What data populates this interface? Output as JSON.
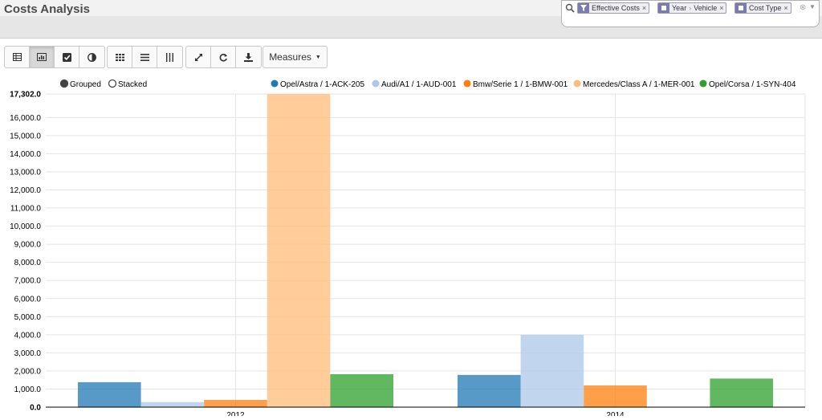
{
  "header": {
    "title": "Costs Analysis"
  },
  "search": {
    "facets": [
      {
        "icon": "filter-icon",
        "text": "Effective Costs"
      },
      {
        "icon": "group-icon",
        "text": "Year",
        "text2": "Vehicle"
      },
      {
        "icon": "group-icon",
        "text": "Cost Type"
      }
    ]
  },
  "toolbar": {
    "view_buttons": [
      "table-view-icon",
      "bar-chart-view-icon",
      "checkbox-icon",
      "pie-contrast-icon"
    ],
    "layout_buttons": [
      "grid-icon",
      "list-rows-icon",
      "columns-icon"
    ],
    "action_buttons": [
      "expand-icon",
      "refresh-icon",
      "download-icon"
    ],
    "measures_label": "Measures"
  },
  "colors": {
    "series": [
      "#1f77b4",
      "#aec7e8",
      "#ff7f0e",
      "#ffbb78",
      "#2ca02c"
    ]
  },
  "chart_data": {
    "type": "bar",
    "mode_options": [
      "Grouped",
      "Stacked"
    ],
    "mode_selected": "Grouped",
    "categories": [
      "2012",
      "2014"
    ],
    "series": [
      {
        "name": "Opel/Astra / 1-ACK-205",
        "values": [
          1380,
          1780
        ]
      },
      {
        "name": "Audi/A1 / 1-AUD-001",
        "values": [
          280,
          4000
        ]
      },
      {
        "name": "Bmw/Serie 1 / 1-BMW-001",
        "values": [
          400,
          1200
        ]
      },
      {
        "name": "Mercedes/Class A / 1-MER-001",
        "values": [
          17302,
          0
        ]
      },
      {
        "name": "Opel/Corsa / 1-SYN-404",
        "values": [
          1820,
          1580
        ]
      }
    ],
    "ylim": [
      0,
      17302
    ],
    "yticks": [
      "0.0",
      "1,000.0",
      "2,000.0",
      "3,000.0",
      "4,000.0",
      "5,000.0",
      "6,000.0",
      "7,000.0",
      "8,000.0",
      "9,000.0",
      "10,000.0",
      "11,000.0",
      "12,000.0",
      "13,000.0",
      "14,000.0",
      "15,000.0",
      "16,000.0",
      "17,302.0"
    ],
    "ytick_values": [
      0,
      1000,
      2000,
      3000,
      4000,
      5000,
      6000,
      7000,
      8000,
      9000,
      10000,
      11000,
      12000,
      13000,
      14000,
      15000,
      16000,
      17302
    ],
    "grid": true,
    "legend_position": "top-right"
  }
}
